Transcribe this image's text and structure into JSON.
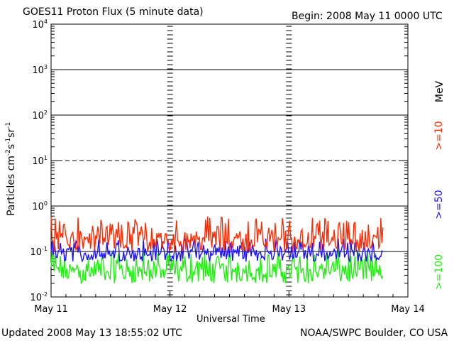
{
  "header": {
    "title": "GOES11 Proton Flux (5 minute data)",
    "begin": "Begin: 2008 May 11 0000 UTC"
  },
  "footer": {
    "updated": "Updated 2008 May 13 18:55:02 UTC",
    "credit": "NOAA/SWPC Boulder, CO USA"
  },
  "legend": {
    "unit": "MeV",
    "items": [
      {
        "label": ">=10",
        "color": "#ff2a00"
      },
      {
        "label": ">=50",
        "color": "#1a10ff"
      },
      {
        "label": ">=100",
        "color": "#22ee11"
      }
    ]
  },
  "axes": {
    "xlabel": "Universal Time",
    "ylabel_base": "Particles cm",
    "ylabel_sup1": "-2",
    "ylabel_mid1": "s",
    "ylabel_sup2": "-1",
    "ylabel_mid2": "sr",
    "ylabel_sup3": "-1"
  },
  "chart_data": {
    "type": "line",
    "title": "GOES11 Proton Flux (5 minute data)",
    "xlabel": "Universal Time",
    "ylabel": "Particles cm-2 s-1 sr-1",
    "y_scale": "log",
    "ylim": [
      0.01,
      10000
    ],
    "y_ticks": [
      {
        "base": "10",
        "exp": "4",
        "value": 10000
      },
      {
        "base": "10",
        "exp": "3",
        "value": 1000
      },
      {
        "base": "10",
        "exp": "2",
        "value": 100
      },
      {
        "base": "10",
        "exp": "1",
        "value": 10
      },
      {
        "base": "10",
        "exp": "0",
        "value": 1
      },
      {
        "base": "10",
        "exp": "-1",
        "value": 0.1
      },
      {
        "base": "10",
        "exp": "-2",
        "value": 0.01
      }
    ],
    "x_ticks": [
      "May 11",
      "May 12",
      "May 13",
      "May 14"
    ],
    "x_range_days": [
      0,
      3
    ],
    "data_end_day": 2.79,
    "grid": {
      "solid_y": [
        1000,
        100,
        1,
        0.1
      ],
      "dashed_y": [
        10
      ]
    },
    "series": [
      {
        "name": ">=10 MeV",
        "color": "#ff2a00",
        "y_min": 0.1,
        "y_max": 0.6,
        "typical": 0.2
      },
      {
        "name": ">=50 MeV",
        "color": "#1a10ff",
        "y_min": 0.06,
        "y_max": 0.2,
        "typical": 0.1
      },
      {
        "name": ">=100 MeV",
        "color": "#22ee11",
        "y_min": 0.02,
        "y_max": 0.1,
        "typical": 0.04
      }
    ]
  }
}
